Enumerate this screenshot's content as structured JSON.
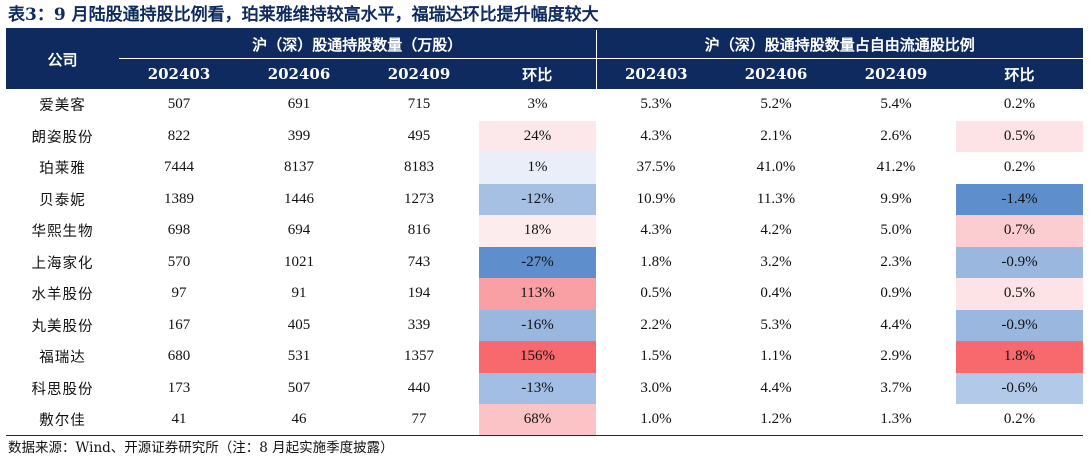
{
  "title": "表3：9 月陆股通持股比例看，珀莱雅维持较高水平，福瑞达环比提升幅度较大",
  "header": {
    "company": "公司",
    "group_shares": "沪（深）股通持股数量（万股）",
    "group_ratio": "沪（深）股通持股数量占自由流通股比例",
    "shares_cols": [
      "202403",
      "202406",
      "202409",
      "环比"
    ],
    "ratio_cols": [
      "202403",
      "202406",
      "202409",
      "环比"
    ]
  },
  "rows": [
    {
      "name": "爱美客",
      "s1": "507",
      "s2": "691",
      "s3": "715",
      "sc": "3%",
      "sc_color": "#ffffff",
      "r1": "5.3%",
      "r2": "5.2%",
      "r3": "5.4%",
      "rc": "0.2%",
      "rc_color": "#ffffff"
    },
    {
      "name": "朗姿股份",
      "s1": "822",
      "s2": "399",
      "s3": "495",
      "sc": "24%",
      "sc_color": "#fce8ea",
      "r1": "4.3%",
      "r2": "2.1%",
      "r3": "2.6%",
      "rc": "0.5%",
      "rc_color": "#fde3e5"
    },
    {
      "name": "珀莱雅",
      "s1": "7444",
      "s2": "8137",
      "s3": "8183",
      "sc": "1%",
      "sc_color": "#e9eef8",
      "r1": "37.5%",
      "r2": "41.0%",
      "r3": "41.2%",
      "rc": "0.2%",
      "rc_color": "#ffffff"
    },
    {
      "name": "贝泰妮",
      "s1": "1389",
      "s2": "1446",
      "s3": "1273",
      "sc": "-12%",
      "sc_color": "#a6c0e4",
      "r1": "10.9%",
      "r2": "11.3%",
      "r3": "9.9%",
      "rc": "-1.4%",
      "rc_color": "#5e8fcc"
    },
    {
      "name": "华熙生物",
      "s1": "698",
      "s2": "694",
      "s3": "816",
      "sc": "18%",
      "sc_color": "#fdecee",
      "r1": "4.3%",
      "r2": "4.2%",
      "r3": "5.0%",
      "rc": "0.7%",
      "rc_color": "#fbcdd0"
    },
    {
      "name": "上海家化",
      "s1": "570",
      "s2": "1021",
      "s3": "743",
      "sc": "-27%",
      "sc_color": "#5e8fcc",
      "r1": "1.8%",
      "r2": "3.2%",
      "r3": "2.3%",
      "rc": "-0.9%",
      "rc_color": "#9ab7e0"
    },
    {
      "name": "水羊股份",
      "s1": "97",
      "s2": "91",
      "s3": "194",
      "sc": "113%",
      "sc_color": "#f9a0a4",
      "r1": "0.5%",
      "r2": "0.4%",
      "r3": "0.9%",
      "rc": "0.5%",
      "rc_color": "#fde3e5"
    },
    {
      "name": "丸美股份",
      "s1": "167",
      "s2": "405",
      "s3": "339",
      "sc": "-16%",
      "sc_color": "#9ab7e0",
      "r1": "2.2%",
      "r2": "5.3%",
      "r3": "4.4%",
      "rc": "-0.9%",
      "rc_color": "#9ab7e0"
    },
    {
      "name": "福瑞达",
      "s1": "680",
      "s2": "531",
      "s3": "1357",
      "sc": "156%",
      "sc_color": "#f7696c",
      "r1": "1.5%",
      "r2": "1.1%",
      "r3": "2.9%",
      "rc": "1.8%",
      "rc_color": "#f7696c"
    },
    {
      "name": "科思股份",
      "s1": "173",
      "s2": "507",
      "s3": "440",
      "sc": "-13%",
      "sc_color": "#a3bee4",
      "r1": "3.0%",
      "r2": "4.4%",
      "r3": "3.7%",
      "rc": "-0.6%",
      "rc_color": "#b3c9e9"
    },
    {
      "name": "敷尔佳",
      "s1": "41",
      "s2": "46",
      "s3": "77",
      "sc": "68%",
      "sc_color": "#fbc3c6",
      "r1": "1.0%",
      "r2": "1.2%",
      "r3": "1.3%",
      "rc": "0.2%",
      "rc_color": "#ffffff"
    }
  ],
  "source": "数据来源：Wind、开源证券研究所（注：8 月起实施季度披露）"
}
